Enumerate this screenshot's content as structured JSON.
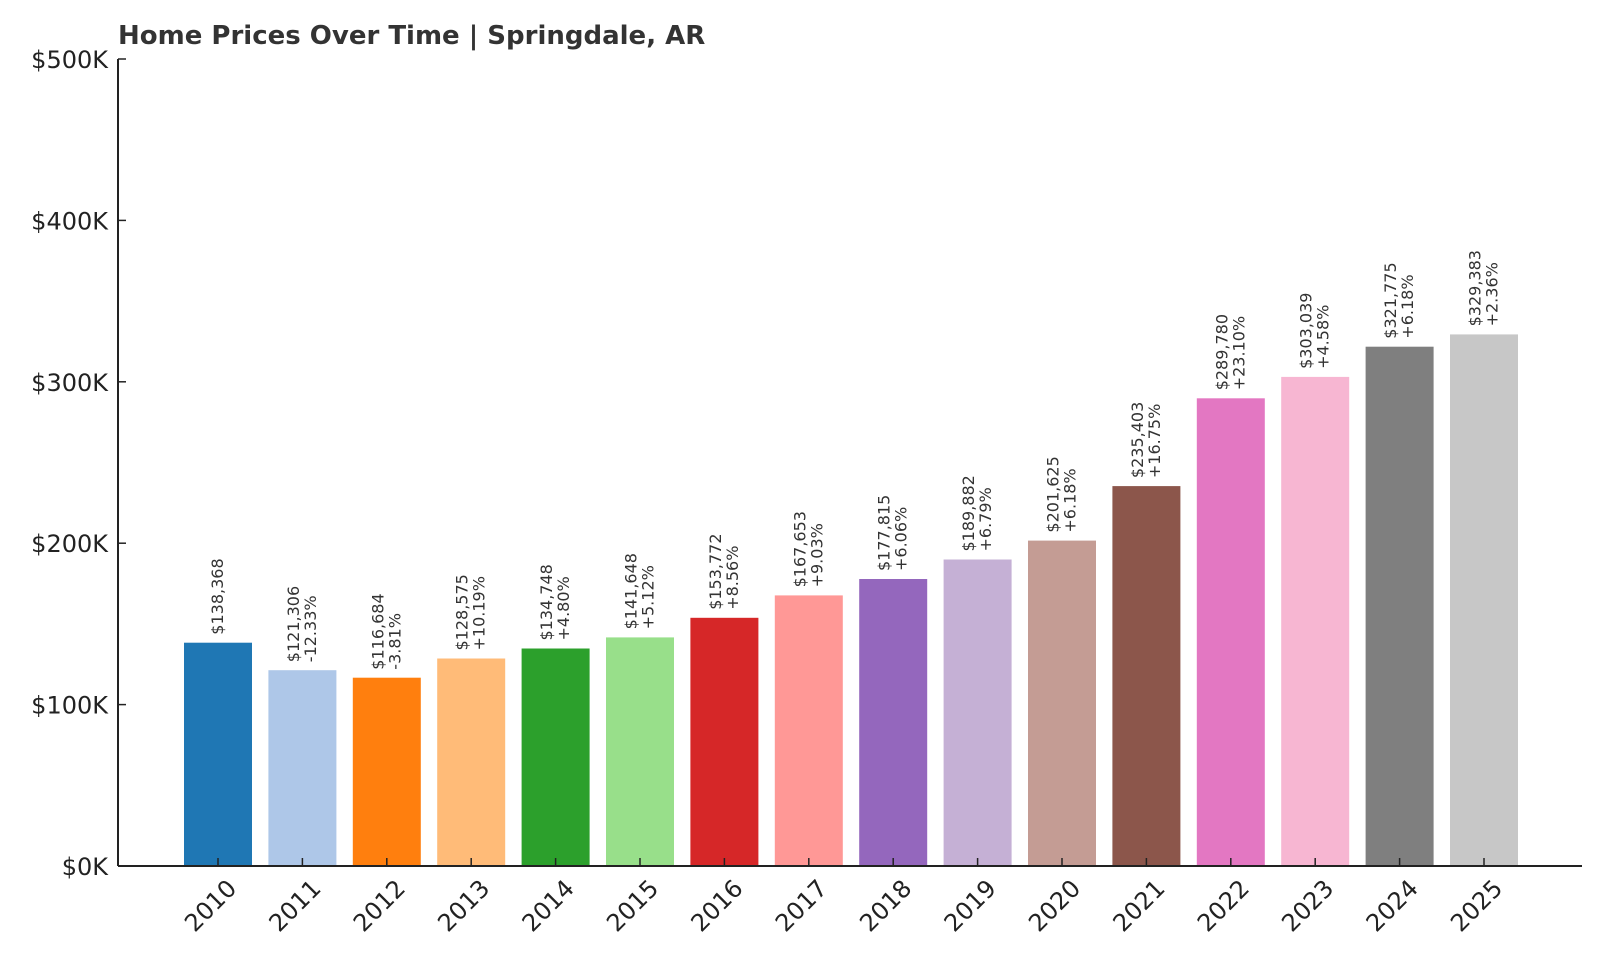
{
  "chart_data": {
    "type": "bar",
    "title": "Home Prices Over Time | Springdale, AR",
    "xlabel": "",
    "ylabel": "",
    "ylim": [
      0,
      500000
    ],
    "yticks": [
      0,
      100000,
      200000,
      300000,
      400000,
      500000
    ],
    "ytick_labels": [
      "$0K",
      "$100K",
      "$200K",
      "$300K",
      "$400K",
      "$500K"
    ],
    "grid": false,
    "legend": "none",
    "categories": [
      "2010",
      "2011",
      "2012",
      "2013",
      "2014",
      "2015",
      "2016",
      "2017",
      "2018",
      "2019",
      "2020",
      "2021",
      "2022",
      "2023",
      "2024",
      "2025"
    ],
    "values": [
      138368,
      121306,
      116684,
      128575,
      134748,
      141648,
      153772,
      167653,
      177815,
      189882,
      201625,
      235403,
      289780,
      303039,
      321775,
      329383
    ],
    "value_labels": [
      "$138,368",
      "$121,306",
      "$116,684",
      "$128,575",
      "$134,748",
      "$141,648",
      "$153,772",
      "$167,653",
      "$177,815",
      "$189,882",
      "$201,625",
      "$235,403",
      "$289,780",
      "$303,039",
      "$321,775",
      "$329,383"
    ],
    "change_labels": [
      "",
      "-12.33%",
      "-3.81%",
      "+10.19%",
      "+4.80%",
      "+5.12%",
      "+8.56%",
      "+9.03%",
      "+6.06%",
      "+6.79%",
      "+6.18%",
      "+16.75%",
      "+23.10%",
      "+4.58%",
      "+6.18%",
      "+2.36%"
    ],
    "colors": [
      "#1f77b4",
      "#aec7e8",
      "#ff7f0e",
      "#ffbb78",
      "#2ca02c",
      "#98df8a",
      "#d62728",
      "#ff9896",
      "#9467bd",
      "#c5b0d5",
      "#c49c94",
      "#8c564b",
      "#e377c2",
      "#f7b6d2",
      "#7f7f7f",
      "#c7c7c7"
    ]
  }
}
